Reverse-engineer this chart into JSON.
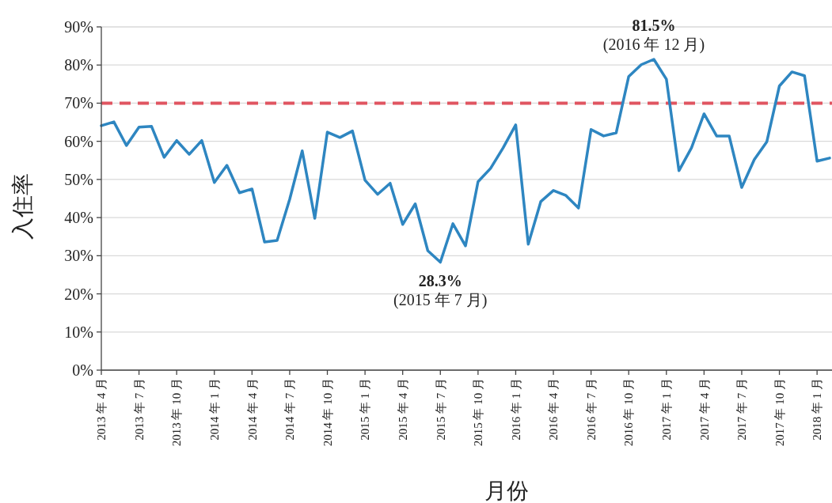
{
  "chart_data": {
    "type": "line",
    "xlabel": "月份",
    "ylabel": "入住率",
    "categories": [
      "2013 年 4 月",
      null,
      null,
      "2013 年 7 月",
      null,
      null,
      "2013 年 10 月",
      null,
      null,
      "2014 年 1 月",
      null,
      null,
      "2014 年 4 月",
      null,
      null,
      "2014 年 7 月",
      null,
      null,
      "2014 年 10 月",
      null,
      null,
      "2015 年 1 月",
      null,
      null,
      "2015 年 4 月",
      null,
      null,
      "2015 年 7 月",
      null,
      null,
      "2015 年 10 月",
      null,
      null,
      "2016 年 1 月",
      null,
      null,
      "2016 年 4 月",
      null,
      null,
      "2016 年 7 月",
      null,
      null,
      "2016 年 10 月",
      null,
      null,
      "2017 年 1 月",
      null,
      null,
      "2017 年 4 月",
      null,
      null,
      "2017 年 7 月",
      null,
      null,
      "2017 年 10 月",
      null,
      null,
      "2018 年 1 月",
      null
    ],
    "series": [
      {
        "color": "#2e86c1",
        "values": [
          64.1,
          65.1,
          58.9,
          63.7,
          63.9,
          55.8,
          60.2,
          56.6,
          60.2,
          49.2,
          53.7,
          46.5,
          47.5,
          33.6,
          34.0,
          44.8,
          57.5,
          39.8,
          62.4,
          61.0,
          62.7,
          49.8,
          46.1,
          49.0,
          38.2,
          43.6,
          31.3,
          28.3,
          38.4,
          32.6,
          49.4,
          52.9,
          58.3,
          64.3,
          33.0,
          44.2,
          47.1,
          45.8,
          42.5,
          63.1,
          61.4,
          62.2,
          77.0,
          80.1,
          81.5,
          76.3,
          52.3,
          58.3,
          67.2,
          61.4,
          61.4,
          47.9,
          55.2,
          59.9,
          74.5,
          78.2,
          77.2,
          54.8,
          55.6
        ]
      }
    ],
    "ylim": [
      0,
      90
    ],
    "yticks": [
      {
        "value": 0,
        "label": "0%"
      },
      {
        "value": 10,
        "label": "10%"
      },
      {
        "value": 20,
        "label": "20%"
      },
      {
        "value": 30,
        "label": "30%"
      },
      {
        "value": 40,
        "label": "40%"
      },
      {
        "value": 50,
        "label": "50%"
      },
      {
        "value": 60,
        "label": "60%"
      },
      {
        "value": 70,
        "label": "70%"
      },
      {
        "value": 80,
        "label": "80%"
      },
      {
        "value": 90,
        "label": "90%"
      }
    ],
    "grid": "y",
    "marker": "none",
    "line_style": "solid",
    "ref_lines": [
      {
        "axis": "y",
        "value": 70,
        "color": "#e05561",
        "line_style": "dashed"
      }
    ],
    "annotations": [
      {
        "text": "81.5%\n(2016 年 12 月)",
        "y": 81.5
      },
      {
        "text": "28.3%\n(2015 年 7 月)",
        "y": 28.3
      }
    ]
  }
}
